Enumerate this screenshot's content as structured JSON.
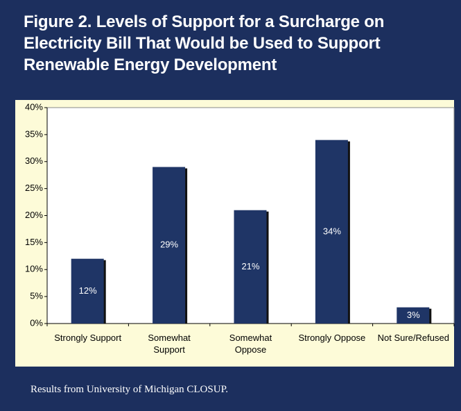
{
  "chart_data": {
    "type": "bar",
    "title": "Figure 2.  Levels of Support for a Surcharge on\nElectricity Bill That Would be Used to Support\nRenewable Energy Development",
    "categories": [
      "Strongly Support",
      "Somewhat\nSupport",
      "Somewhat\nOppose",
      "Strongly Oppose",
      "Not Sure/Refused"
    ],
    "values": [
      12,
      29,
      21,
      34,
      3
    ],
    "value_labels": [
      "12%",
      "29%",
      "21%",
      "34%",
      "3%"
    ],
    "color": "#1f3566",
    "ylim": [
      0,
      40
    ],
    "yticks": [
      {
        "value": 0,
        "label": "0%"
      },
      {
        "value": 5,
        "label": "5%"
      },
      {
        "value": 10,
        "label": "10%"
      },
      {
        "value": 15,
        "label": "15%"
      },
      {
        "value": 20,
        "label": "20%"
      },
      {
        "value": 25,
        "label": "25%"
      },
      {
        "value": 30,
        "label": "30%"
      },
      {
        "value": 35,
        "label": "35%"
      },
      {
        "value": 40,
        "label": "40%"
      }
    ],
    "grid": false,
    "footer": "Results from University of Michigan CLOSUP."
  }
}
